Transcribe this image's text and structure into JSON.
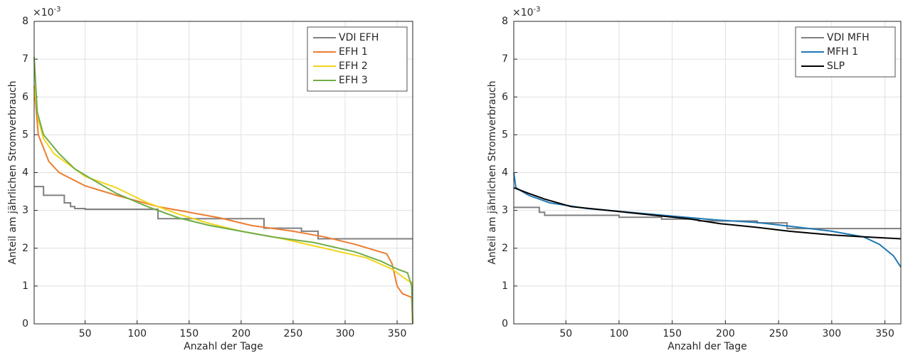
{
  "chart_data": [
    {
      "type": "line",
      "xlabel": "Anzahl der Tage",
      "ylabel": "Anteil am jährlichen Stromverbrauch",
      "y_multiplier": {
        "base": "×10",
        "exponent": "-3"
      },
      "xlim": [
        1,
        365
      ],
      "ylim": [
        0,
        8
      ],
      "xticks": [
        50,
        100,
        150,
        200,
        250,
        300,
        350
      ],
      "yticks": [
        0,
        1,
        2,
        3,
        4,
        5,
        6,
        7,
        8
      ],
      "grid": true,
      "legend": "upper right",
      "series": [
        {
          "name": "VDI EFH",
          "color": "#808080",
          "x": [
            1,
            10,
            10,
            30,
            30,
            36,
            36,
            40,
            40,
            50,
            50,
            120,
            120,
            222,
            222,
            258,
            258,
            274,
            274,
            365
          ],
          "values": [
            3.63,
            3.63,
            3.4,
            3.4,
            3.2,
            3.2,
            3.1,
            3.1,
            3.05,
            3.05,
            3.03,
            3.03,
            2.78,
            2.78,
            2.53,
            2.53,
            2.45,
            2.45,
            2.25,
            2.25
          ]
        },
        {
          "name": "EFH 1",
          "color": "#ed7d31",
          "x": [
            1,
            5,
            15,
            25,
            50,
            80,
            120,
            150,
            180,
            210,
            250,
            280,
            310,
            340,
            345,
            350,
            355,
            364,
            365
          ],
          "values": [
            6.3,
            5.0,
            4.3,
            4.0,
            3.65,
            3.4,
            3.1,
            2.95,
            2.8,
            2.6,
            2.45,
            2.3,
            2.1,
            1.85,
            1.6,
            1.0,
            0.8,
            0.7,
            0
          ]
        },
        {
          "name": "EFH 2",
          "color": "#f2d51c",
          "x": [
            1,
            5,
            10,
            20,
            35,
            50,
            80,
            110,
            140,
            170,
            200,
            240,
            280,
            320,
            345,
            360,
            364,
            365
          ],
          "values": [
            6.3,
            5.4,
            4.9,
            4.5,
            4.2,
            3.9,
            3.6,
            3.2,
            2.9,
            2.65,
            2.45,
            2.25,
            2.0,
            1.75,
            1.45,
            1.15,
            1.1,
            0
          ]
        },
        {
          "name": "EFH 3",
          "color": "#70ad47",
          "x": [
            1,
            4,
            10,
            25,
            40,
            55,
            80,
            110,
            140,
            170,
            200,
            230,
            270,
            310,
            335,
            350,
            360,
            364,
            365
          ],
          "values": [
            7.05,
            5.6,
            5.0,
            4.5,
            4.1,
            3.85,
            3.45,
            3.1,
            2.8,
            2.6,
            2.45,
            2.3,
            2.15,
            1.9,
            1.65,
            1.45,
            1.35,
            1.0,
            0
          ]
        }
      ]
    },
    {
      "type": "line",
      "xlabel": "Anzahl der Tage",
      "ylabel": "Anteil am jährlichen Stromverbrauch",
      "y_multiplier": {
        "base": "×10",
        "exponent": "-3"
      },
      "xlim": [
        1,
        365
      ],
      "ylim": [
        0,
        8
      ],
      "xticks": [
        50,
        100,
        150,
        200,
        250,
        300,
        350
      ],
      "yticks": [
        0,
        1,
        2,
        3,
        4,
        5,
        6,
        7,
        8
      ],
      "grid": true,
      "legend": "upper right",
      "series": [
        {
          "name": "VDI MFH",
          "color": "#808080",
          "x": [
            1,
            25,
            25,
            30,
            30,
            100,
            100,
            140,
            140,
            175,
            175,
            230,
            230,
            258,
            258,
            365
          ],
          "values": [
            3.08,
            3.08,
            2.95,
            2.95,
            2.87,
            2.87,
            2.82,
            2.82,
            2.77,
            2.77,
            2.72,
            2.72,
            2.67,
            2.67,
            2.52,
            2.52
          ]
        },
        {
          "name": "MFH 1",
          "color": "#1f77b4",
          "x": [
            1,
            3,
            15,
            35,
            70,
            110,
            150,
            190,
            230,
            270,
            300,
            330,
            345,
            358,
            365
          ],
          "values": [
            4.0,
            3.6,
            3.4,
            3.2,
            3.05,
            2.95,
            2.85,
            2.75,
            2.68,
            2.55,
            2.45,
            2.3,
            2.1,
            1.8,
            1.5
          ]
        },
        {
          "name": "SLP",
          "color": "#000000",
          "x": [
            1,
            15,
            30,
            55,
            90,
            130,
            165,
            195,
            230,
            260,
            300,
            330,
            365
          ],
          "values": [
            3.6,
            3.45,
            3.3,
            3.1,
            3.0,
            2.88,
            2.78,
            2.65,
            2.55,
            2.45,
            2.35,
            2.3,
            2.25
          ]
        }
      ]
    }
  ]
}
